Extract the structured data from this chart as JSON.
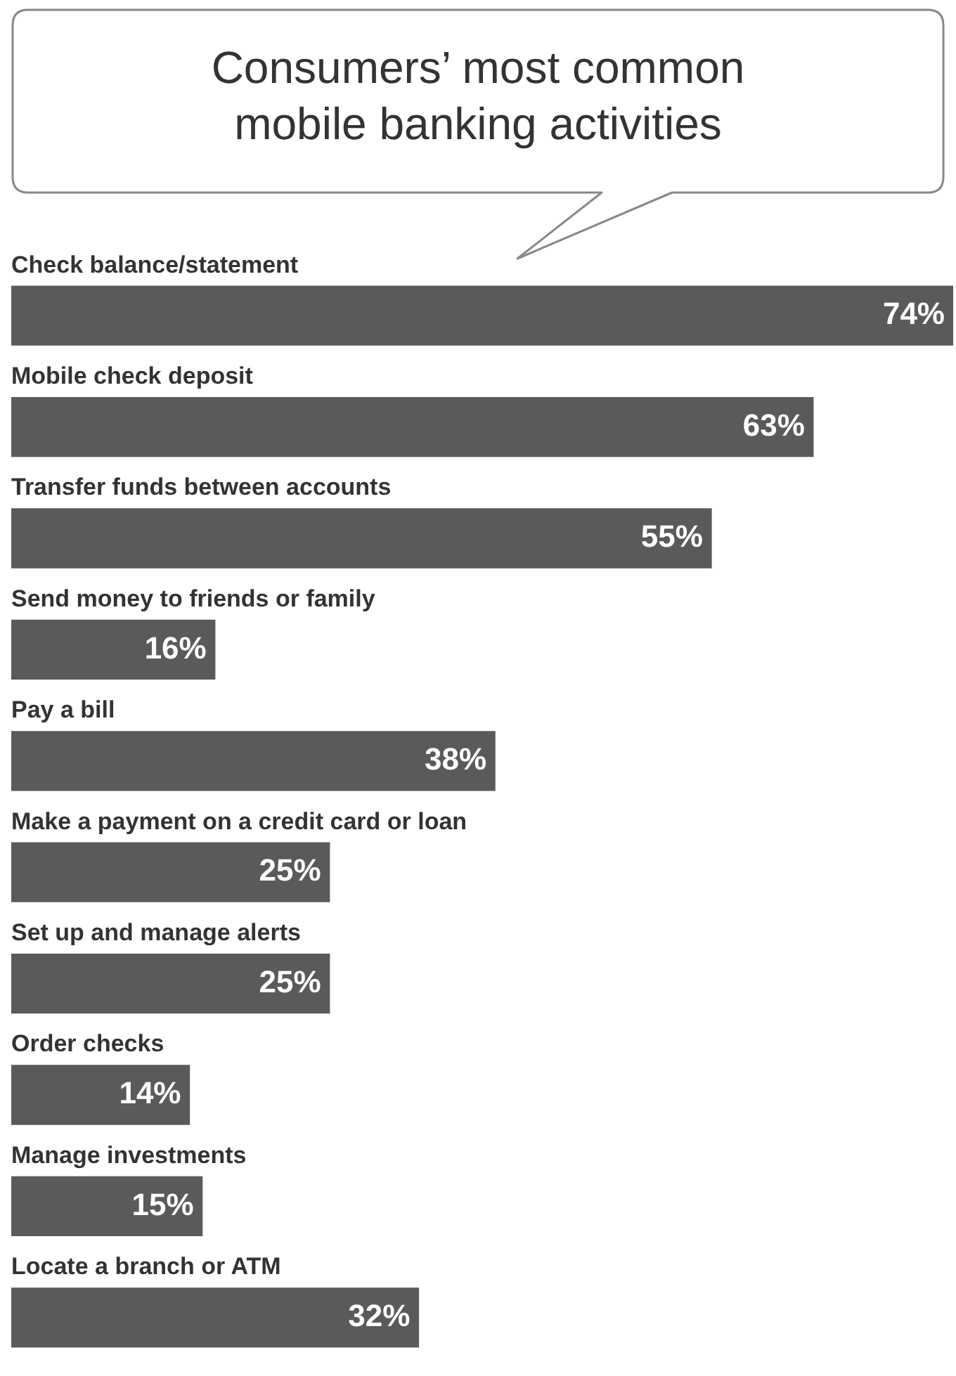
{
  "chart_data": {
    "type": "bar",
    "orientation": "horizontal",
    "title": "Consumers’ most common mobile banking activities",
    "categories": [
      "Check balance/statement",
      "Mobile check deposit",
      "Transfer funds between accounts",
      "Send money to friends or family",
      "Pay a bill",
      "Make a payment on a credit card or loan",
      "Set up and manage alerts",
      "Order checks",
      "Manage investments",
      "Locate a branch or ATM"
    ],
    "values": [
      74,
      63,
      55,
      16,
      38,
      25,
      25,
      14,
      15,
      32
    ],
    "value_labels": [
      "74%",
      "63%",
      "55%",
      "16%",
      "38%",
      "25%",
      "25%",
      "14%",
      "15%",
      "32%"
    ],
    "color": "#5a5a5a"
  }
}
